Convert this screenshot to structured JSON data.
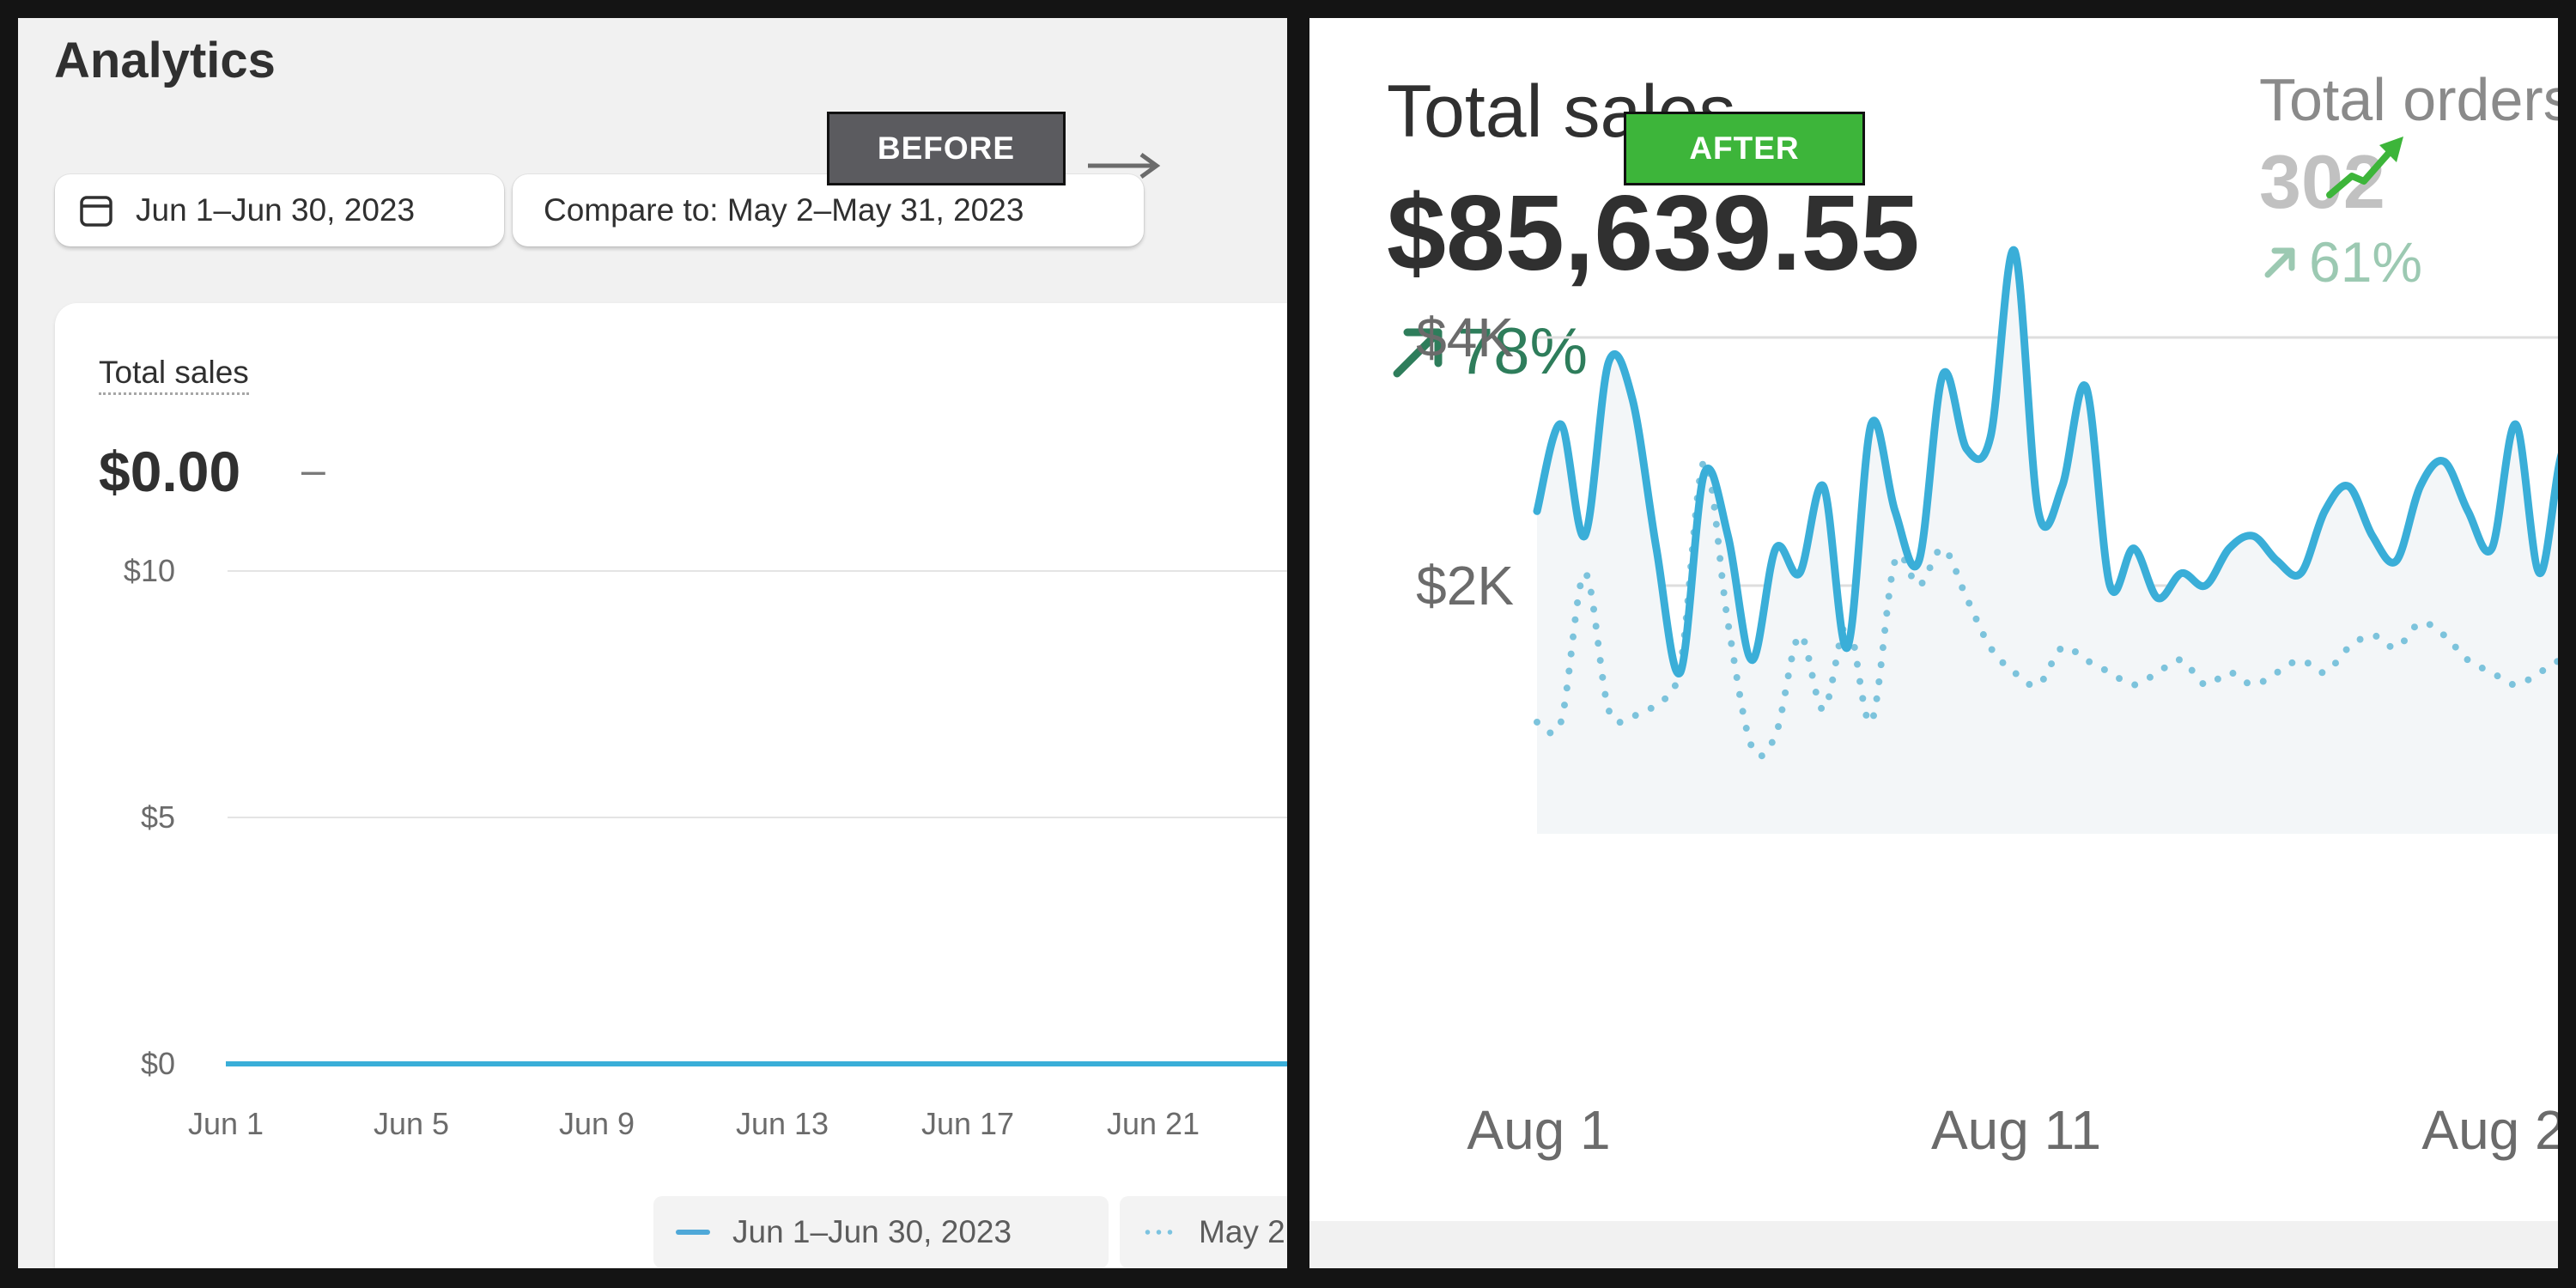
{
  "before": {
    "page_title": "Analytics",
    "date_range_label": "Jun 1–Jun 30, 2023",
    "compare_label": "Compare to: May 2–May 31, 2023",
    "metric_label": "Total sales",
    "metric_value": "$0.00",
    "metric_change": "–",
    "legend_current": "Jun 1–Jun 30, 2023",
    "legend_compare": "May 2",
    "icons": [
      "calendar-icon"
    ]
  },
  "after": {
    "metric_label": "Total sales",
    "metric_value": "$85,639.55",
    "metric_change": "78%",
    "orders_label": "Total orders",
    "orders_value": "302",
    "orders_change": "61%",
    "icons": [
      "arrow-up-right-icon",
      "trend-up-icon"
    ]
  },
  "annotations": {
    "before_badge": "BEFORE",
    "after_badge": "AFTER"
  },
  "colors": {
    "series_current": "#3aaed8",
    "series_compare": "#7cc3dc",
    "positive": "#2e7d5b",
    "after_badge": "#3db53a",
    "before_badge": "#5b5b5f"
  },
  "chart_data": [
    {
      "type": "line",
      "title": "",
      "ylabel": "",
      "xlabel": "",
      "y_ticks": [
        "$10",
        "$5",
        "$0"
      ],
      "ylim": [
        0,
        10
      ],
      "x_ticks": [
        "Jun 1",
        "Jun 5",
        "Jun 9",
        "Jun 13",
        "Jun 17",
        "Jun 21"
      ],
      "series": [
        {
          "values": [
            0,
            0,
            0,
            0,
            0,
            0
          ]
        }
      ],
      "grid": true,
      "legend_placement": "bottom"
    },
    {
      "type": "line",
      "title": "",
      "ylabel": "",
      "xlabel": "",
      "y_ticks": [
        "$4K",
        "$2K"
      ],
      "x_ticks": [
        "Aug 1",
        "Aug 11",
        "Aug 2"
      ],
      "x_start_day": 1,
      "x_end_day": 22,
      "grid": true,
      "series": [
        {
          "style": "solid",
          "x": [
            1,
            1.5,
            2,
            2.5,
            3,
            3.5,
            4,
            4.5,
            5,
            5.5,
            6,
            6.5,
            7,
            7.5,
            8,
            8.5,
            9,
            9.5,
            10,
            10.5,
            11,
            11.5,
            12,
            12.5,
            13,
            13.5,
            14,
            14.5,
            15,
            15.5,
            16,
            16.5,
            17,
            17.5,
            18,
            18.5,
            19,
            19.5,
            20,
            20.5,
            21,
            21.5,
            22,
            22.5,
            23,
            23.5
          ],
          "values": [
            2600,
            3300,
            2400,
            3800,
            3500,
            2300,
            1300,
            2900,
            2400,
            1400,
            2300,
            2100,
            2800,
            1500,
            3300,
            2600,
            2200,
            3700,
            3100,
            3200,
            4700,
            2600,
            2800,
            3600,
            2000,
            2300,
            1900,
            2100,
            2000,
            2300,
            2400,
            2200,
            2100,
            2600,
            2800,
            2400,
            2200,
            2800,
            3000,
            2600,
            2300,
            3300,
            2100,
            3100,
            2700,
            2400
          ]
        },
        {
          "style": "dotted",
          "x": [
            1,
            1.5,
            2,
            2.5,
            3,
            3.5,
            4,
            4.5,
            5,
            5.5,
            6,
            6.5,
            7,
            7.5,
            8,
            8.5,
            9,
            9.5,
            10,
            10.5,
            11,
            11.5,
            12,
            12.5,
            13,
            13.5,
            14,
            14.5,
            15,
            15.5,
            16,
            16.5,
            17,
            17.5,
            18,
            18.5,
            19,
            19.5,
            20,
            20.5,
            21,
            21.5,
            22,
            22.5,
            23,
            23.5
          ],
          "values": [
            900,
            900,
            2100,
            1000,
            950,
            1050,
            1350,
            3000,
            1700,
            700,
            800,
            1600,
            1000,
            1700,
            900,
            2200,
            2000,
            2300,
            1900,
            1500,
            1300,
            1200,
            1500,
            1400,
            1300,
            1200,
            1300,
            1400,
            1200,
            1300,
            1200,
            1300,
            1400,
            1300,
            1500,
            1600,
            1500,
            1700,
            1600,
            1400,
            1300,
            1200,
            1300,
            1400,
            1300,
            1200
          ]
        }
      ]
    }
  ]
}
